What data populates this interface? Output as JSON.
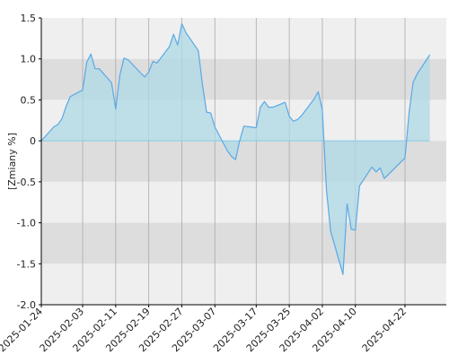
{
  "chart_data": {
    "type": "area",
    "title": "",
    "xlabel": "",
    "ylabel": "[Zmiany %]",
    "ylim": [
      -2.0,
      1.5
    ],
    "xlim": [
      "2025-01-24",
      "2025-05-02"
    ],
    "grid": true,
    "legend": "none",
    "y_ticks": [
      {
        "value": 1.5,
        "label": "1.5"
      },
      {
        "value": 1.0,
        "label": "1.0"
      },
      {
        "value": 0.5,
        "label": "0.5"
      },
      {
        "value": 0.0,
        "label": "0"
      },
      {
        "value": -0.5,
        "label": "-0.5"
      },
      {
        "value": -1.0,
        "label": "-1.0"
      },
      {
        "value": -1.5,
        "label": "-1.5"
      },
      {
        "value": -2.0,
        "label": "-2.0"
      }
    ],
    "x_ticks": [
      "2025-01-24",
      "2025-02-03",
      "2025-02-11",
      "2025-02-19",
      "2025-02-27",
      "2025-03-07",
      "2025-03-17",
      "2025-03-25",
      "2025-04-02",
      "2025-04-10",
      "2025-04-22"
    ],
    "series": [
      {
        "values": [
          {
            "x": "2025-01-24",
            "y": 0.0
          },
          {
            "x": "2025-01-27",
            "y": 0.17
          },
          {
            "x": "2025-01-28",
            "y": 0.2
          },
          {
            "x": "2025-01-29",
            "y": 0.27
          },
          {
            "x": "2025-01-30",
            "y": 0.42
          },
          {
            "x": "2025-01-31",
            "y": 0.54
          },
          {
            "x": "2025-02-03",
            "y": 0.62
          },
          {
            "x": "2025-02-04",
            "y": 0.96
          },
          {
            "x": "2025-02-05",
            "y": 1.06
          },
          {
            "x": "2025-02-06",
            "y": 0.88
          },
          {
            "x": "2025-02-07",
            "y": 0.88
          },
          {
            "x": "2025-02-10",
            "y": 0.71
          },
          {
            "x": "2025-02-11",
            "y": 0.39
          },
          {
            "x": "2025-02-12",
            "y": 0.8
          },
          {
            "x": "2025-02-13",
            "y": 1.01
          },
          {
            "x": "2025-02-14",
            "y": 0.99
          },
          {
            "x": "2025-02-17",
            "y": 0.83
          },
          {
            "x": "2025-02-18",
            "y": 0.78
          },
          {
            "x": "2025-02-19",
            "y": 0.84
          },
          {
            "x": "2025-02-20",
            "y": 0.97
          },
          {
            "x": "2025-02-21",
            "y": 0.95
          },
          {
            "x": "2025-02-24",
            "y": 1.15
          },
          {
            "x": "2025-02-25",
            "y": 1.3
          },
          {
            "x": "2025-02-26",
            "y": 1.17
          },
          {
            "x": "2025-02-27",
            "y": 1.43
          },
          {
            "x": "2025-02-28",
            "y": 1.32
          },
          {
            "x": "2025-03-03",
            "y": 1.1
          },
          {
            "x": "2025-03-04",
            "y": 0.68
          },
          {
            "x": "2025-03-05",
            "y": 0.35
          },
          {
            "x": "2025-03-06",
            "y": 0.34
          },
          {
            "x": "2025-03-07",
            "y": 0.17
          },
          {
            "x": "2025-03-10",
            "y": -0.12
          },
          {
            "x": "2025-03-11",
            "y": -0.19
          },
          {
            "x": "2025-03-12",
            "y": -0.23
          },
          {
            "x": "2025-03-13",
            "y": 0.0
          },
          {
            "x": "2025-03-14",
            "y": 0.18
          },
          {
            "x": "2025-03-17",
            "y": 0.16
          },
          {
            "x": "2025-03-18",
            "y": 0.41
          },
          {
            "x": "2025-03-19",
            "y": 0.48
          },
          {
            "x": "2025-03-20",
            "y": 0.41
          },
          {
            "x": "2025-03-21",
            "y": 0.41
          },
          {
            "x": "2025-03-24",
            "y": 0.47
          },
          {
            "x": "2025-03-25",
            "y": 0.3
          },
          {
            "x": "2025-03-26",
            "y": 0.24
          },
          {
            "x": "2025-03-27",
            "y": 0.26
          },
          {
            "x": "2025-03-28",
            "y": 0.31
          },
          {
            "x": "2025-03-31",
            "y": 0.51
          },
          {
            "x": "2025-04-01",
            "y": 0.6
          },
          {
            "x": "2025-04-02",
            "y": 0.38
          },
          {
            "x": "2025-04-03",
            "y": -0.6
          },
          {
            "x": "2025-04-04",
            "y": -1.1
          },
          {
            "x": "2025-04-07",
            "y": -1.63
          },
          {
            "x": "2025-04-08",
            "y": -0.77
          },
          {
            "x": "2025-04-09",
            "y": -1.08
          },
          {
            "x": "2025-04-10",
            "y": -1.09
          },
          {
            "x": "2025-04-11",
            "y": -0.55
          },
          {
            "x": "2025-04-14",
            "y": -0.32
          },
          {
            "x": "2025-04-15",
            "y": -0.38
          },
          {
            "x": "2025-04-16",
            "y": -0.33
          },
          {
            "x": "2025-04-17",
            "y": -0.46
          },
          {
            "x": "2025-04-22",
            "y": -0.21
          },
          {
            "x": "2025-04-23",
            "y": 0.35
          },
          {
            "x": "2025-04-24",
            "y": 0.72
          },
          {
            "x": "2025-04-25",
            "y": 0.82
          },
          {
            "x": "2025-04-28",
            "y": 1.05
          }
        ]
      }
    ]
  },
  "colors": {
    "band_light": "#efefef",
    "band_dark": "#dddddd",
    "line": "#5aa9e6",
    "fill": "#add8e6",
    "grid_vertical": "#aaaaaa",
    "axis": "#000000"
  }
}
